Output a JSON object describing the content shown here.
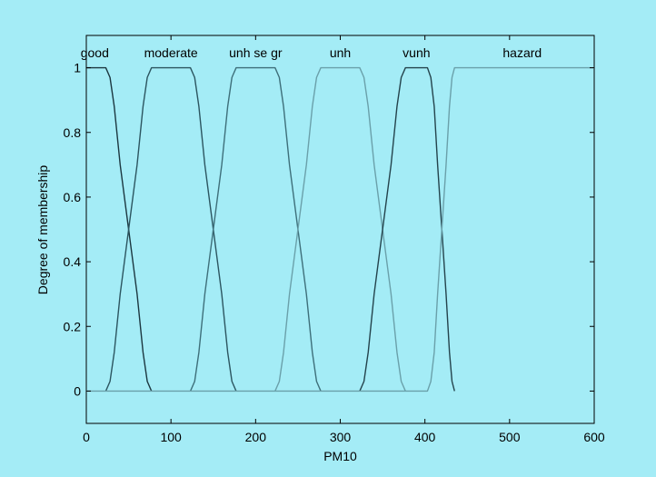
{
  "chart_data": {
    "type": "line",
    "title": "",
    "xlabel": "PM10",
    "ylabel": "Degree of membership",
    "xlim": [
      0,
      600
    ],
    "ylim": [
      -0.1,
      1.1
    ],
    "xticks": [
      0,
      100,
      200,
      300,
      400,
      500,
      600
    ],
    "yticks": [
      0,
      0.2,
      0.4,
      0.6,
      0.8,
      1
    ],
    "grid": false,
    "legend": "none",
    "colors": {
      "background": "#a4ecf6",
      "axes": "#000000"
    },
    "series": [
      {
        "name": "good",
        "color": "#1c3740",
        "x": [
          0,
          23,
          28,
          33,
          40,
          50,
          60,
          67,
          72,
          77
        ],
        "y": [
          1,
          1,
          0.97,
          0.88,
          0.7,
          0.5,
          0.3,
          0.12,
          0.03,
          0
        ]
      },
      {
        "name": "moderate",
        "color": "#2c5560",
        "x": [
          23,
          28,
          33,
          40,
          50,
          60,
          67,
          72,
          77,
          123,
          128,
          133,
          140,
          150,
          160,
          167,
          172,
          177
        ],
        "y": [
          0,
          0.03,
          0.12,
          0.3,
          0.5,
          0.7,
          0.88,
          0.97,
          1,
          1,
          0.97,
          0.88,
          0.7,
          0.5,
          0.3,
          0.12,
          0.03,
          0
        ]
      },
      {
        "name": "unh se gr",
        "color": "#3e6f7a",
        "x": [
          123,
          128,
          133,
          140,
          150,
          160,
          167,
          172,
          177,
          223,
          228,
          233,
          240,
          250,
          260,
          267,
          272,
          277
        ],
        "y": [
          0,
          0.03,
          0.12,
          0.3,
          0.5,
          0.7,
          0.88,
          0.97,
          1,
          1,
          0.97,
          0.88,
          0.7,
          0.5,
          0.3,
          0.12,
          0.03,
          0
        ]
      },
      {
        "name": "unh",
        "color": "#6aa0aa",
        "x": [
          223,
          228,
          233,
          240,
          250,
          260,
          267,
          272,
          277,
          323,
          328,
          333,
          340,
          350,
          360,
          367,
          372,
          377
        ],
        "y": [
          0,
          0.03,
          0.12,
          0.3,
          0.5,
          0.7,
          0.88,
          0.97,
          1,
          1,
          0.97,
          0.88,
          0.7,
          0.5,
          0.3,
          0.12,
          0.03,
          0
        ]
      },
      {
        "name": "vunh",
        "color": "#24434c",
        "x": [
          323,
          328,
          333,
          340,
          350,
          360,
          367,
          372,
          377,
          403,
          407,
          411,
          415,
          420,
          425,
          429,
          432,
          435
        ],
        "y": [
          0,
          0.03,
          0.12,
          0.3,
          0.5,
          0.7,
          0.88,
          0.97,
          1,
          1,
          0.97,
          0.88,
          0.7,
          0.5,
          0.3,
          0.12,
          0.03,
          0
        ]
      },
      {
        "name": "hazard",
        "color": "#6aa0aa",
        "x": [
          0,
          403,
          407,
          411,
          415,
          420,
          425,
          429,
          432,
          435,
          600
        ],
        "y": [
          0,
          0,
          0.03,
          0.12,
          0.3,
          0.5,
          0.7,
          0.88,
          0.97,
          1,
          1
        ]
      }
    ],
    "annotations": [
      {
        "text": "good",
        "x": 10
      },
      {
        "text": "moderate",
        "x": 100
      },
      {
        "text": "unh se gr",
        "x": 200
      },
      {
        "text": "unh",
        "x": 300
      },
      {
        "text": "vunh",
        "x": 390
      },
      {
        "text": "hazard",
        "x": 515
      }
    ]
  }
}
